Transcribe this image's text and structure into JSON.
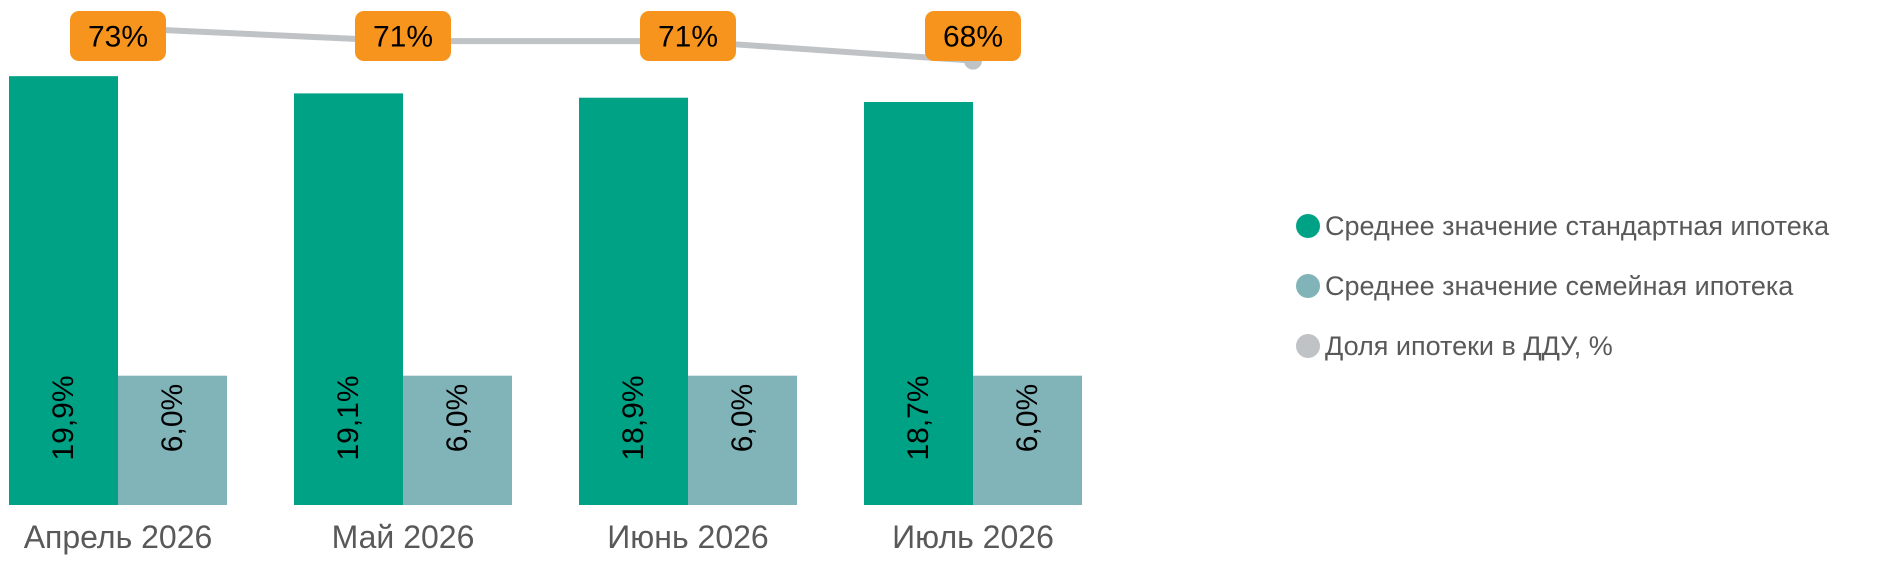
{
  "chart_data": {
    "type": "bar",
    "categories": [
      "Апрель 2026",
      "Май 2026",
      "Июнь 2026",
      "Июль 2026"
    ],
    "series": [
      {
        "name": "Среднее значение стандартная ипотека",
        "values": [
          19.9,
          19.1,
          18.9,
          18.7
        ],
        "labels": [
          "19,9%",
          "19,1%",
          "18,9%",
          "18,7%"
        ],
        "color": "#00A286",
        "kind": "bar"
      },
      {
        "name": "Среднее значение семейная ипотека",
        "values": [
          6.0,
          6.0,
          6.0,
          6.0
        ],
        "labels": [
          "6,0%",
          "6,0%",
          "6,0%",
          "6,0%"
        ],
        "color": "#80B4B9",
        "kind": "bar"
      },
      {
        "name": "Доля ипотеки в ДДУ, %",
        "values": [
          73,
          71,
          71,
          68
        ],
        "labels": [
          "73%",
          "71%",
          "71%",
          "68%"
        ],
        "color": "#BFC3C6",
        "kind": "line",
        "label_bg": "#F7941D"
      }
    ],
    "bar_ylim": [
      0,
      20
    ],
    "line_ylim": [
      0,
      73
    ],
    "legend_position": "right",
    "grid": false
  }
}
